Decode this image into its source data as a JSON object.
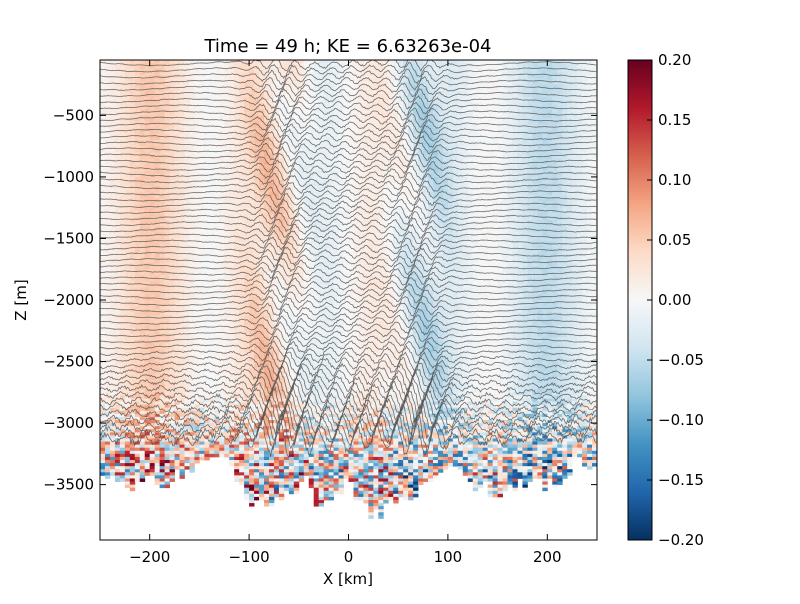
{
  "chart_data": {
    "type": "heatmap",
    "title": "Time = 49 h; KE = 6.63263e-04",
    "xlabel": "X [km]",
    "ylabel": "Z [m]",
    "xlim": [
      -250,
      250
    ],
    "ylim": [
      -3950,
      -50
    ],
    "x_ticks": [
      {
        "value": -200,
        "label": "−200"
      },
      {
        "value": -100,
        "label": "−100"
      },
      {
        "value": 0,
        "label": "0"
      },
      {
        "value": 100,
        "label": "100"
      },
      {
        "value": 200,
        "label": "200"
      }
    ],
    "y_ticks": [
      {
        "value": -500,
        "label": "−500"
      },
      {
        "value": -1000,
        "label": "−1000"
      },
      {
        "value": -1500,
        "label": "−1500"
      },
      {
        "value": -2000,
        "label": "−2000"
      },
      {
        "value": -2500,
        "label": "−2500"
      },
      {
        "value": -3000,
        "label": "−3000"
      },
      {
        "value": -3500,
        "label": "−3500"
      }
    ],
    "colorbar": {
      "colormap": "RdBu_r",
      "limits": [
        -0.2,
        0.2
      ],
      "colors": [
        "#053061",
        "#2166ac",
        "#4393c3",
        "#92c5de",
        "#d1e5f0",
        "#f7f7f7",
        "#fddbc7",
        "#f4a582",
        "#d6604d",
        "#b2182b",
        "#67001f"
      ],
      "ticks": [
        {
          "value": 0.2,
          "label": "0.20"
        },
        {
          "value": 0.15,
          "label": "0.15"
        },
        {
          "value": 0.1,
          "label": "0.10"
        },
        {
          "value": 0.05,
          "label": "0.05"
        },
        {
          "value": 0.0,
          "label": "0.00"
        },
        {
          "value": -0.05,
          "label": "−0.05"
        },
        {
          "value": -0.1,
          "label": "−0.10"
        },
        {
          "value": -0.15,
          "label": "−0.15"
        },
        {
          "value": -0.2,
          "label": "−0.20"
        }
      ]
    },
    "bathymetry": {
      "x": [
        -250,
        -240,
        -230,
        -220,
        -210,
        -200,
        -190,
        -180,
        -170,
        -160,
        -150,
        -140,
        -130,
        -120,
        -110,
        -100,
        -90,
        -80,
        -70,
        -60,
        -50,
        -40,
        -30,
        -20,
        -10,
        0,
        10,
        20,
        30,
        40,
        50,
        60,
        70,
        80,
        90,
        100,
        110,
        120,
        130,
        140,
        150,
        160,
        170,
        180,
        190,
        200,
        210,
        220,
        230,
        240,
        250
      ],
      "depth": [
        -3350,
        -3450,
        -3530,
        -3480,
        -3500,
        -3420,
        -3520,
        -3520,
        -3400,
        -3380,
        -3300,
        -3250,
        -3220,
        -3250,
        -3500,
        -3600,
        -3640,
        -3600,
        -3650,
        -3550,
        -3500,
        -3450,
        -3650,
        -3600,
        -3560,
        -3480,
        -3580,
        -3700,
        -3750,
        -3650,
        -3570,
        -3600,
        -3550,
        -3480,
        -3380,
        -3300,
        -3380,
        -3450,
        -3500,
        -3520,
        -3550,
        -3600,
        -3500,
        -3500,
        -3430,
        -3500,
        -3450,
        -3380,
        -3300,
        -3350,
        -3300
      ]
    },
    "contour_lines": {
      "count": 62,
      "top_depth": -80,
      "spacing_m": 50,
      "color": "#555555"
    }
  }
}
